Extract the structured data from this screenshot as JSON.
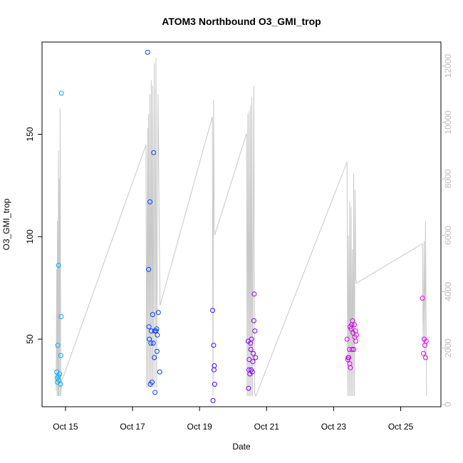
{
  "chart_data": {
    "type": "scatter",
    "title": "ATOM3 Northbound O3_GMI_trop",
    "xlabel": "Date",
    "ylabel": "O3_GMI_trop",
    "x_ticks": [
      "Oct 15",
      "Oct 17",
      "Oct 19",
      "Oct 21",
      "Oct 23",
      "Oct 25"
    ],
    "x_tick_days": [
      15,
      17,
      19,
      21,
      23,
      25
    ],
    "xlim_days": [
      14.3,
      26.2
    ],
    "ylim": [
      17,
      195
    ],
    "y_ticks": [
      50,
      100,
      150
    ],
    "y2_ticks": [
      0,
      2000,
      4000,
      6000,
      8000,
      10000,
      12000
    ],
    "y2lim": [
      -80,
      12850
    ],
    "y2_color": "#bbbbbb",
    "line_color": "#c8c8c8",
    "grid": false,
    "legend": "none",
    "series": [
      {
        "values": [
          [
            14.74,
            34
          ],
          [
            14.75,
            31
          ],
          [
            14.76,
            29
          ],
          [
            14.78,
            32
          ],
          [
            14.8,
            30
          ],
          [
            14.77,
            47
          ],
          [
            14.79,
            86
          ],
          [
            14.83,
            33
          ],
          [
            14.85,
            28
          ],
          [
            14.86,
            42
          ],
          [
            14.87,
            61
          ],
          [
            14.88,
            170
          ]
        ]
      },
      {
        "values": [
          [
            17.45,
            190
          ],
          [
            17.48,
            84
          ],
          [
            17.49,
            56
          ],
          [
            17.5,
            50
          ],
          [
            17.52,
            117
          ],
          [
            17.53,
            28
          ],
          [
            17.55,
            48
          ],
          [
            17.56,
            54
          ],
          [
            17.58,
            29
          ],
          [
            17.6,
            62
          ],
          [
            17.62,
            48
          ],
          [
            17.63,
            141
          ],
          [
            17.65,
            41
          ],
          [
            17.66,
            54
          ],
          [
            17.67,
            24
          ],
          [
            17.7,
            54
          ],
          [
            17.72,
            55
          ],
          [
            17.73,
            44
          ],
          [
            17.74,
            52
          ],
          [
            17.77,
            63
          ],
          [
            17.81,
            34
          ]
        ]
      },
      {
        "values": [
          [
            19.39,
            64
          ],
          [
            19.42,
            47
          ],
          [
            19.43,
            35
          ],
          [
            19.44,
            37
          ],
          [
            19.45,
            28
          ],
          [
            19.4,
            20
          ]
        ]
      },
      {
        "values": [
          [
            20.45,
            49
          ],
          [
            20.46,
            26
          ],
          [
            20.47,
            35
          ],
          [
            20.48,
            40
          ],
          [
            20.5,
            33
          ],
          [
            20.52,
            48
          ],
          [
            20.53,
            45
          ],
          [
            20.54,
            35
          ],
          [
            20.55,
            50
          ],
          [
            20.57,
            34
          ],
          [
            20.59,
            39
          ],
          [
            20.6,
            43
          ],
          [
            20.62,
            59
          ],
          [
            20.63,
            72
          ],
          [
            20.65,
            54
          ],
          [
            20.67,
            41
          ]
        ]
      },
      {
        "values": [
          [
            23.4,
            50
          ],
          [
            23.42,
            40
          ],
          [
            23.43,
            41
          ],
          [
            23.45,
            41
          ],
          [
            23.47,
            45
          ],
          [
            23.48,
            38
          ],
          [
            23.49,
            56
          ],
          [
            23.5,
            36
          ],
          [
            23.52,
            55
          ],
          [
            23.54,
            57
          ],
          [
            23.55,
            45
          ],
          [
            23.56,
            59
          ],
          [
            23.58,
            53
          ],
          [
            23.6,
            45
          ],
          [
            23.62,
            57
          ],
          [
            23.63,
            51
          ],
          [
            23.65,
            54
          ],
          [
            23.66,
            49
          ],
          [
            23.68,
            52
          ]
        ]
      },
      {
        "values": [
          [
            25.65,
            70
          ],
          [
            25.68,
            43
          ],
          [
            25.7,
            50
          ],
          [
            25.72,
            47
          ],
          [
            25.74,
            41
          ],
          [
            25.76,
            49
          ]
        ]
      }
    ],
    "altitude_series": {
      "axis": "right",
      "values": [
        [
          14.72,
          500
        ],
        [
          14.74,
          4800
        ],
        [
          14.75,
          300
        ],
        [
          14.76,
          6500
        ],
        [
          14.77,
          4800
        ],
        [
          14.78,
          300
        ],
        [
          14.79,
          9000
        ],
        [
          14.8,
          300
        ],
        [
          14.81,
          8000
        ],
        [
          14.83,
          300
        ],
        [
          14.84,
          10500
        ],
        [
          14.86,
          300
        ],
        [
          14.88,
          800
        ],
        [
          17.4,
          9200
        ],
        [
          17.42,
          600
        ],
        [
          17.45,
          9800
        ],
        [
          17.46,
          600
        ],
        [
          17.48,
          10300
        ],
        [
          17.5,
          600
        ],
        [
          17.52,
          11000
        ],
        [
          17.54,
          600
        ],
        [
          17.56,
          11500
        ],
        [
          17.58,
          600
        ],
        [
          17.6,
          11300
        ],
        [
          17.62,
          600
        ],
        [
          17.65,
          12100
        ],
        [
          17.67,
          600
        ],
        [
          17.7,
          12300
        ],
        [
          17.72,
          600
        ],
        [
          17.76,
          11000
        ],
        [
          17.82,
          3500
        ],
        [
          19.38,
          10200
        ],
        [
          19.4,
          300
        ],
        [
          19.42,
          10800
        ],
        [
          19.44,
          6200
        ],
        [
          19.45,
          6000
        ],
        [
          20.4,
          9600
        ],
        [
          20.42,
          300
        ],
        [
          20.44,
          10300
        ],
        [
          20.46,
          300
        ],
        [
          20.48,
          10400
        ],
        [
          20.5,
          300
        ],
        [
          20.52,
          10600
        ],
        [
          20.54,
          300
        ],
        [
          20.56,
          10900
        ],
        [
          20.58,
          300
        ],
        [
          20.62,
          11300
        ],
        [
          20.64,
          400
        ],
        [
          20.68,
          300
        ],
        [
          23.4,
          8600
        ],
        [
          23.42,
          300
        ],
        [
          23.44,
          6000
        ],
        [
          23.46,
          300
        ],
        [
          23.48,
          7200
        ],
        [
          23.5,
          300
        ],
        [
          23.52,
          7000
        ],
        [
          23.54,
          300
        ],
        [
          23.56,
          5500
        ],
        [
          23.58,
          300
        ],
        [
          23.6,
          8200
        ],
        [
          23.62,
          300
        ],
        [
          23.64,
          7600
        ],
        [
          23.66,
          4400
        ],
        [
          23.68,
          4300
        ],
        [
          25.65,
          5700
        ],
        [
          25.67,
          2000
        ],
        [
          25.7,
          5800
        ],
        [
          25.72,
          1600
        ],
        [
          25.74,
          6500
        ],
        [
          25.77,
          300
        ]
      ]
    }
  }
}
